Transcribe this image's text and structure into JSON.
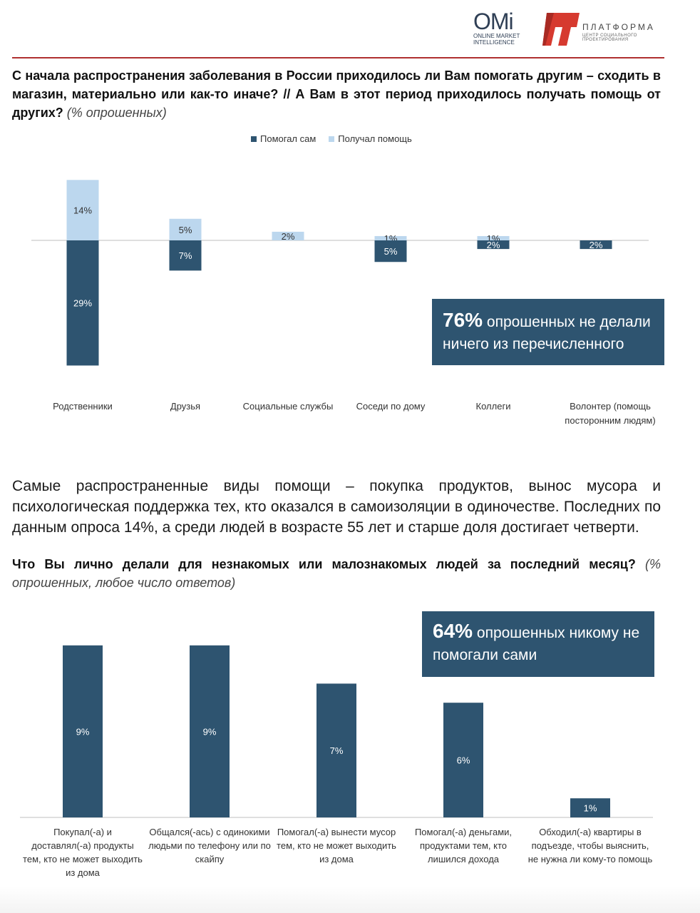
{
  "header": {
    "omi_logo": {
      "name": "OMi",
      "line1": "ONLINE MARKET",
      "line2": "INTELLIGENCE"
    },
    "platform_logo": {
      "name": "ПЛАТФОРМА",
      "subtitle": "ЦЕНТР СОЦИАЛЬНОГО ПРОЕКТИРОВАНИЯ"
    }
  },
  "question1": {
    "text": "С начала распространения заболевания в России приходилось ли Вам помогать другим – сходить в магазин, материально или как-то иначе? // А Вам в этот период приходилось получать помощь от других?",
    "note": "(% опрошенных)"
  },
  "callout1": {
    "big": "76%",
    "text": "опрошенных не делали ничего из перечисленного"
  },
  "paragraph": "Самые распространенные виды помощи – покупка продуктов, вынос мусора и психологическая поддержка тех, кто оказался в самоизоляции в одиночестве. Последних по данным опроса 14%, а среди людей в возрасте 55 лет и старше доля достигает четверти.",
  "question2": {
    "text": "Что Вы лично делали для незнакомых или малознакомых людей за последний месяц?",
    "note": "(% опрошенных, любое число ответов)"
  },
  "callout2": {
    "big": "64%",
    "text": "опрошенных никому не помогали сами"
  },
  "colors": {
    "dark": "#2e5470",
    "light": "#bcd7ee",
    "accent_rule": "#b03030"
  },
  "chart_data": [
    {
      "type": "bar",
      "categories": [
        "Родственники",
        "Друзья",
        "Социальные службы",
        "Соседи по дому",
        "Коллеги",
        "Волонтер (помощь посторонним людям)"
      ],
      "series": [
        {
          "name": "Помогал сам",
          "values": [
            29,
            7,
            null,
            5,
            2,
            2
          ],
          "labels": [
            "29%",
            "7%",
            "",
            "5%",
            "2%",
            "2%"
          ],
          "color": "#2e5470"
        },
        {
          "name": "Получал  помощь",
          "values": [
            14,
            5,
            2,
            1,
            1,
            null
          ],
          "labels": [
            "14%",
            "5%",
            "2%",
            "1%",
            "1%",
            ""
          ],
          "color": "#bcd7ee"
        }
      ],
      "legend_position": "top",
      "grid": false
    },
    {
      "type": "bar",
      "categories": [
        "Покупал(-а) и доставлял(-а) продукты тем, кто не может выходить из дома",
        "Общался(-ась) с одинокими людьми по телефону или по скайпу",
        "Помогал(-а) вынести мусор тем, кто не может выходить из дома",
        "Помогал(-а) деньгами, продуктами тем, кто лишился дохода",
        "Обходил(-а) квартиры в подъезде, чтобы выяснить, не нужна ли кому-то помощь"
      ],
      "values": [
        9,
        9,
        7,
        6,
        1
      ],
      "labels": [
        "9%",
        "9%",
        "7%",
        "6%",
        "1%"
      ],
      "grid": false
    }
  ]
}
